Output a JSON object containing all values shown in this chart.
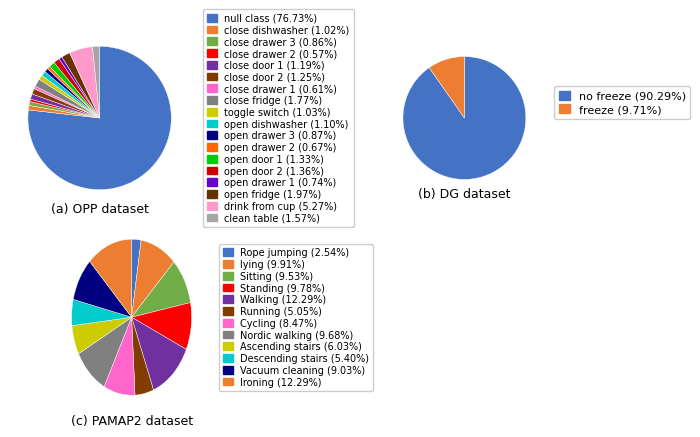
{
  "opp_labels": [
    "null class (76.73%)",
    "close dishwasher (1.02%)",
    "close drawer 3 (0.86%)",
    "close drawer 2 (0.57%)",
    "close door 1 (1.19%)",
    "close door 2 (1.25%)",
    "close drawer 1 (0.61%)",
    "close fridge (1.77%)",
    "toggle switch (1.03%)",
    "open dishwasher (1.10%)",
    "open drawer 3 (0.87%)",
    "open drawer 2 (0.67%)",
    "open door 1 (1.33%)",
    "open door 2 (1.36%)",
    "open drawer 1 (0.74%)",
    "open fridge (1.97%)",
    "drink from cup (5.27%)",
    "clean table (1.57%)"
  ],
  "opp_values": [
    76.73,
    1.02,
    0.86,
    0.57,
    1.19,
    1.25,
    0.61,
    1.77,
    1.03,
    1.1,
    0.87,
    0.67,
    1.33,
    1.36,
    0.74,
    1.97,
    5.27,
    1.57
  ],
  "opp_colors": [
    "#4472c4",
    "#ed7d31",
    "#70ad47",
    "#ff0000",
    "#7030a0",
    "#833c00",
    "#ff66cc",
    "#808080",
    "#cccc00",
    "#00cccc",
    "#000080",
    "#ff6600",
    "#00cc00",
    "#cc0000",
    "#6600cc",
    "#663300",
    "#ff99cc",
    "#a6a6a6"
  ],
  "dg_labels": [
    "no freeze (90.29%)",
    "freeze (9.71%)"
  ],
  "dg_values": [
    90.29,
    9.71
  ],
  "dg_colors": [
    "#4472c4",
    "#ed7d31"
  ],
  "pamap_labels": [
    "Rope jumping (2.54%)",
    "lying (9.91%)",
    "Sitting (9.53%)",
    "Standing (9.78%)",
    "Walking (12.29%)",
    "Running (5.05%)",
    "Cycling (8.47%)",
    "Nordic walking (9.68%)",
    "Ascending stairs (6.03%)",
    "Descending stairs (5.40%)",
    "Vacuum cleaning (9.03%)",
    "Ironing (12.29%)"
  ],
  "pamap_values": [
    2.54,
    9.91,
    9.53,
    9.78,
    12.29,
    5.05,
    8.47,
    9.68,
    6.03,
    5.4,
    9.03,
    12.29
  ],
  "pamap_colors": [
    "#4472c4",
    "#ed7d31",
    "#70ad47",
    "#ff0000",
    "#7030a0",
    "#833c00",
    "#ff66cc",
    "#808080",
    "#cccc00",
    "#00cccc",
    "#000080",
    "#ed7d31"
  ],
  "title_a": "(a) OPP dataset",
  "title_b": "(b) DG dataset",
  "title_c": "(c) PAMAP2 dataset",
  "legend_fontsize": 7,
  "dg_legend_fontsize": 8,
  "title_fontsize": 9
}
